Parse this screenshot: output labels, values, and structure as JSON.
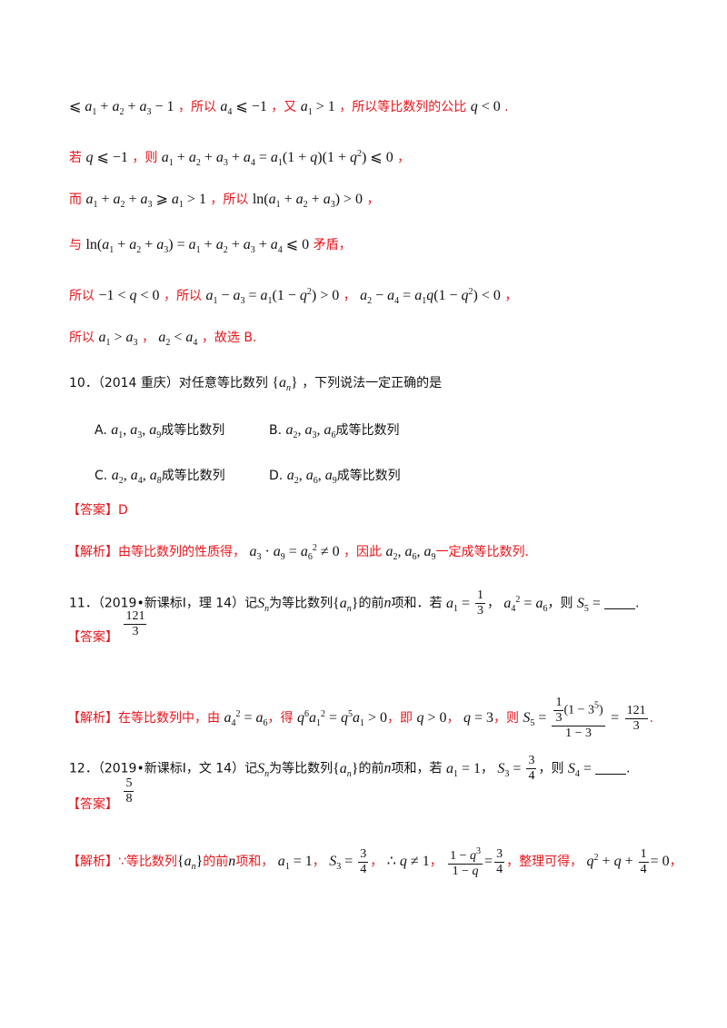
{
  "lines": {
    "l1": {
      "t1": "，所以",
      "t2": "，又",
      "t3": "，所以等比数列的公比",
      "t4": "."
    },
    "l2": {
      "t1": "若",
      "t2": "，则",
      "t3": "，"
    },
    "l3": {
      "t1": "而",
      "t2": "，所以",
      "t3": "，"
    },
    "l4": {
      "t1": "与",
      "t2": "矛盾，"
    },
    "l5": {
      "t1": "所以",
      "t2": "，所以",
      "t3": "，",
      "t4": "，"
    },
    "l6": {
      "t1": "所以",
      "t2": "，",
      "t3": "，故选 B."
    }
  },
  "q10": {
    "stem_prefix": "10．（2014 重庆）对任意等比数列",
    "stem_suffix": "，下列说法一定正确的是",
    "options": [
      {
        "label": "A.",
        "text": "成等比数列"
      },
      {
        "label": "B.",
        "text": "成等比数列"
      },
      {
        "label": "C.",
        "text": "成等比数列"
      },
      {
        "label": "D.",
        "text": "成等比数列"
      }
    ],
    "answer_tag": "【答案】",
    "answer": "D",
    "analysis_tag": "【解析】",
    "analysis_t1": "由等比数列的性质得，",
    "analysis_t2": "，因此",
    "analysis_t3": "一定成等比数列."
  },
  "q11": {
    "stem_prefix": "11．（2019•新课标Ⅰ，理 14）记",
    "stem_mid1": "为等比数列",
    "stem_mid2": "的前",
    "stem_mid3": "项和．若",
    "stem_mid4": "，",
    "stem_mid5": "，则",
    "stem_end": ".",
    "answer_tag": "【答案】",
    "answer_num": "121",
    "answer_den": "3",
    "analysis_tag": "【解析】",
    "a_t1": "在等比数列中，由",
    "a_t2": "，得",
    "a_t3": "，即",
    "a_t4": "，",
    "a_t5": "，则",
    "a_t6": "."
  },
  "q12": {
    "stem_prefix": "12．（2019•新课标Ⅰ，文 14）记",
    "stem_mid1": "为等比数列",
    "stem_mid2": "的前",
    "stem_mid3": "项和，若",
    "stem_mid4": "，",
    "stem_mid5": "，则",
    "stem_end": ".",
    "answer_tag": "【答案】",
    "answer_num": "5",
    "answer_den": "8",
    "analysis_tag": "【解析】",
    "a_t1": "∵等比数列",
    "a_t2": "的前",
    "a_t3": "项和，",
    "a_t4": "，",
    "a_t5": "，",
    "a_t6": "，",
    "a_t7": "，整理可得，",
    "a_t8": "，"
  }
}
